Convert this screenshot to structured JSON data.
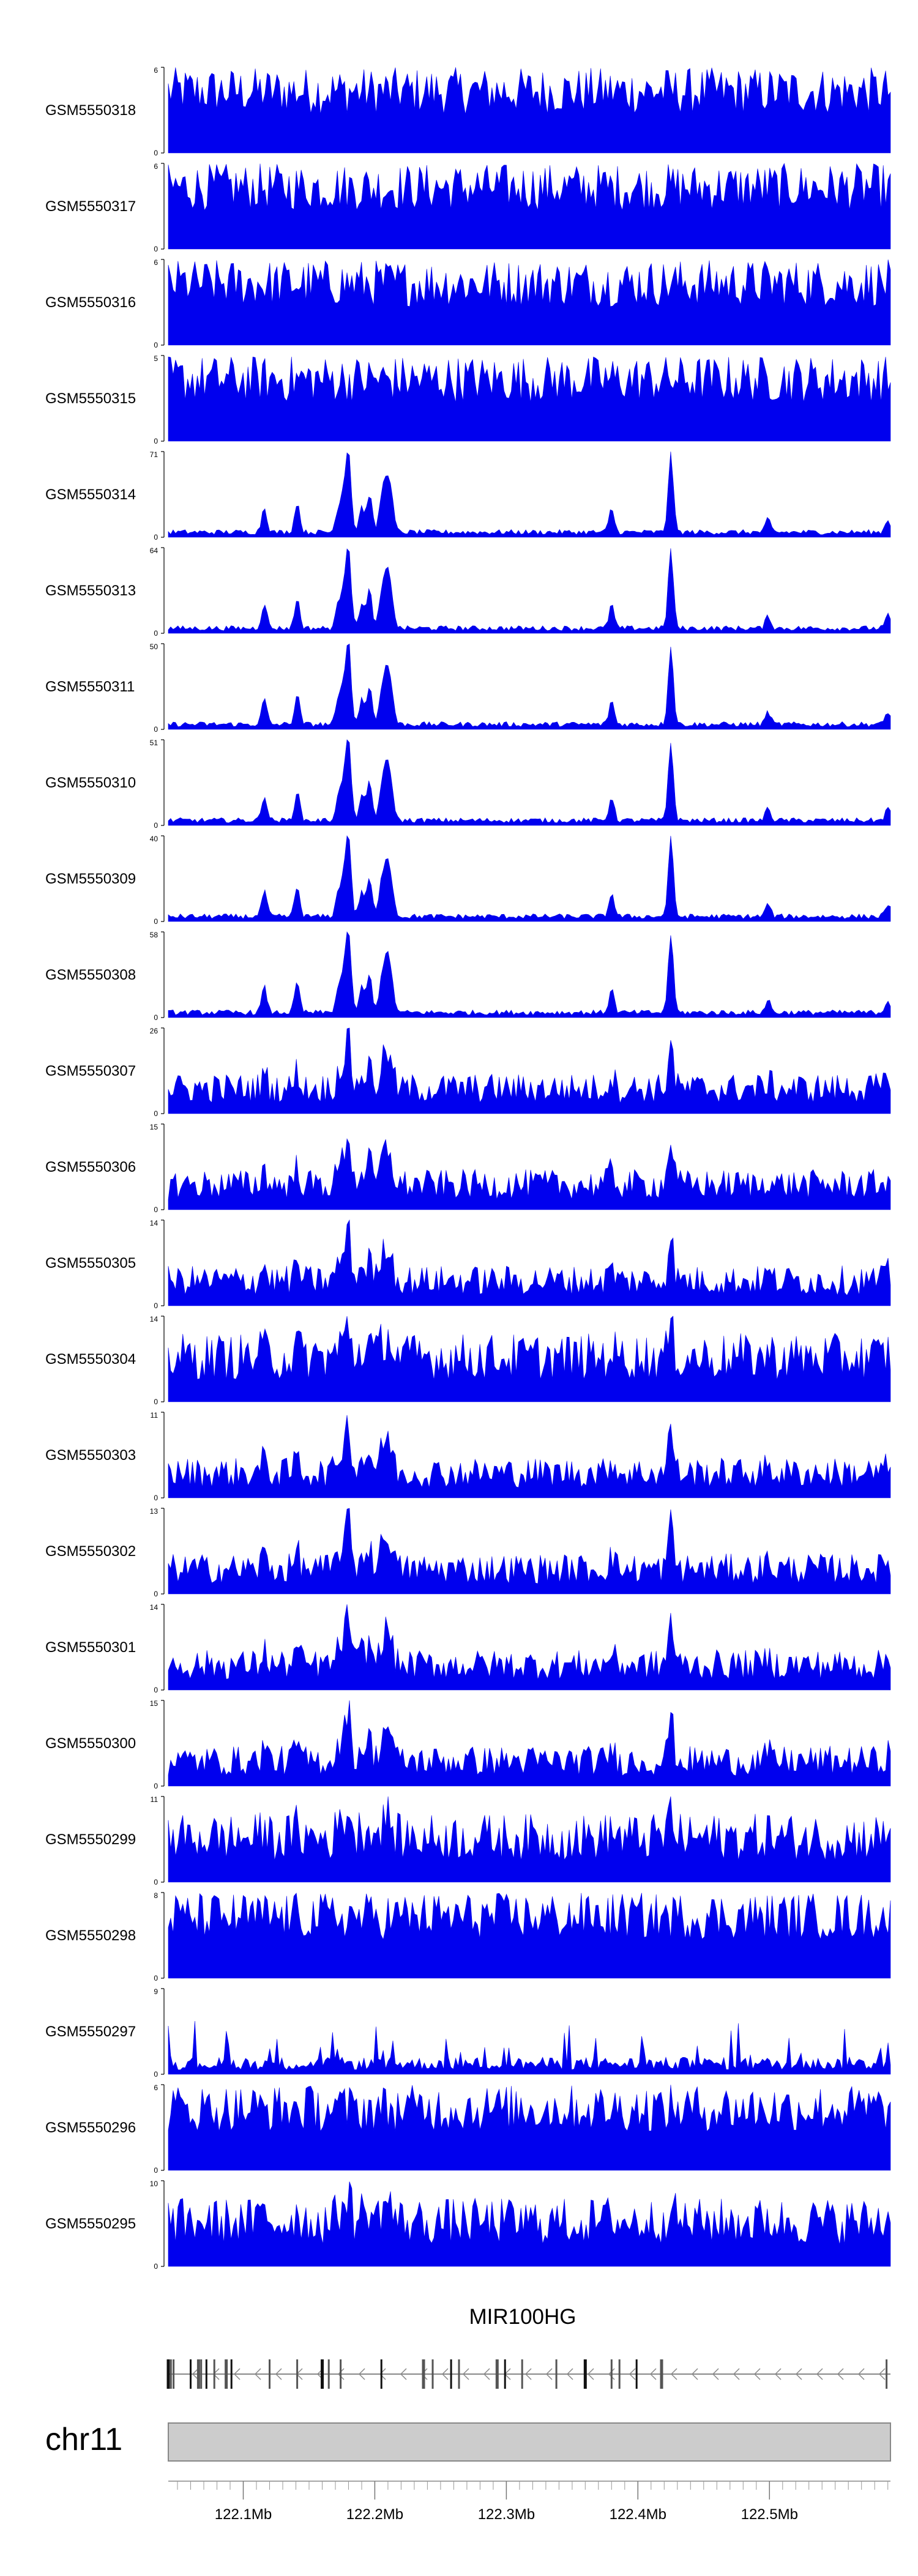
{
  "chart_data": {
    "type": "area",
    "x_unit": "Mb",
    "xlim": [
      122.043,
      122.592
    ],
    "series_color": "#0000ee",
    "tracks": [
      {
        "name": "GSM5550318",
        "ymax": 6,
        "profile": "uniform"
      },
      {
        "name": "GSM5550317",
        "ymax": 6,
        "profile": "uniform"
      },
      {
        "name": "GSM5550316",
        "ymax": 6,
        "profile": "uniform"
      },
      {
        "name": "GSM5550315",
        "ymax": 5,
        "profile": "uniform"
      },
      {
        "name": "GSM5550314",
        "ymax": 71,
        "profile": "peaks"
      },
      {
        "name": "GSM5550313",
        "ymax": 64,
        "profile": "peaks"
      },
      {
        "name": "GSM5550311",
        "ymax": 50,
        "profile": "peaks"
      },
      {
        "name": "GSM5550310",
        "ymax": 51,
        "profile": "peaks"
      },
      {
        "name": "GSM5550309",
        "ymax": 40,
        "profile": "peaks"
      },
      {
        "name": "GSM5550308",
        "ymax": 58,
        "profile": "peaks"
      },
      {
        "name": "GSM5550307",
        "ymax": 26,
        "profile": "medium"
      },
      {
        "name": "GSM5550306",
        "ymax": 15,
        "profile": "medium"
      },
      {
        "name": "GSM5550305",
        "ymax": 14,
        "profile": "medium"
      },
      {
        "name": "GSM5550304",
        "ymax": 14,
        "profile": "noisy"
      },
      {
        "name": "GSM5550303",
        "ymax": 11,
        "profile": "medium"
      },
      {
        "name": "GSM5550302",
        "ymax": 13,
        "profile": "medium"
      },
      {
        "name": "GSM5550301",
        "ymax": 14,
        "profile": "medium"
      },
      {
        "name": "GSM5550300",
        "ymax": 15,
        "profile": "medium"
      },
      {
        "name": "GSM5550299",
        "ymax": 11,
        "profile": "noisy"
      },
      {
        "name": "GSM5550298",
        "ymax": 8,
        "profile": "uniform"
      },
      {
        "name": "GSM5550297",
        "ymax": 9,
        "profile": "sparse"
      },
      {
        "name": "GSM5550296",
        "ymax": 6,
        "profile": "uniform"
      },
      {
        "name": "GSM5550295",
        "ymax": 10,
        "profile": "noisy"
      }
    ],
    "peaks_mb": [
      {
        "x": 122.116,
        "h": 0.3
      },
      {
        "x": 122.141,
        "h": 0.35
      },
      {
        "x": 122.172,
        "h": 0.25
      },
      {
        "x": 122.176,
        "h": 0.4
      },
      {
        "x": 122.18,
        "h": 0.95
      },
      {
        "x": 122.19,
        "h": 0.3
      },
      {
        "x": 122.196,
        "h": 0.45
      },
      {
        "x": 122.205,
        "h": 0.35
      },
      {
        "x": 122.208,
        "h": 0.3
      },
      {
        "x": 122.21,
        "h": 0.4
      },
      {
        "x": 122.213,
        "h": 0.3
      },
      {
        "x": 122.38,
        "h": 0.28
      },
      {
        "x": 122.425,
        "h": 0.92
      },
      {
        "x": 122.499,
        "h": 0.15
      },
      {
        "x": 122.59,
        "h": 0.15
      }
    ],
    "gene": {
      "name": "MIR100HG",
      "strand": "-",
      "start_mb": 122.043,
      "end_mb": 122.592,
      "exons_mb": [
        122.043,
        122.045,
        122.047,
        122.06,
        122.066,
        122.068,
        122.072,
        122.078,
        122.087,
        122.091,
        122.12,
        122.141,
        122.16,
        122.165,
        122.174,
        122.205,
        122.237,
        122.244,
        122.258,
        122.264,
        122.293,
        122.299,
        122.312,
        122.338,
        122.36,
        122.38,
        122.386,
        122.399,
        122.418,
        122.589
      ]
    },
    "ideogram": {
      "chromosome": "chr11"
    },
    "axis": {
      "ticks": [
        {
          "value": 122.1,
          "label": "122.1Mb"
        },
        {
          "value": 122.2,
          "label": "122.2Mb"
        },
        {
          "value": 122.3,
          "label": "122.3Mb"
        },
        {
          "value": 122.4,
          "label": "122.4Mb"
        },
        {
          "value": 122.5,
          "label": "122.5Mb"
        }
      ]
    }
  }
}
